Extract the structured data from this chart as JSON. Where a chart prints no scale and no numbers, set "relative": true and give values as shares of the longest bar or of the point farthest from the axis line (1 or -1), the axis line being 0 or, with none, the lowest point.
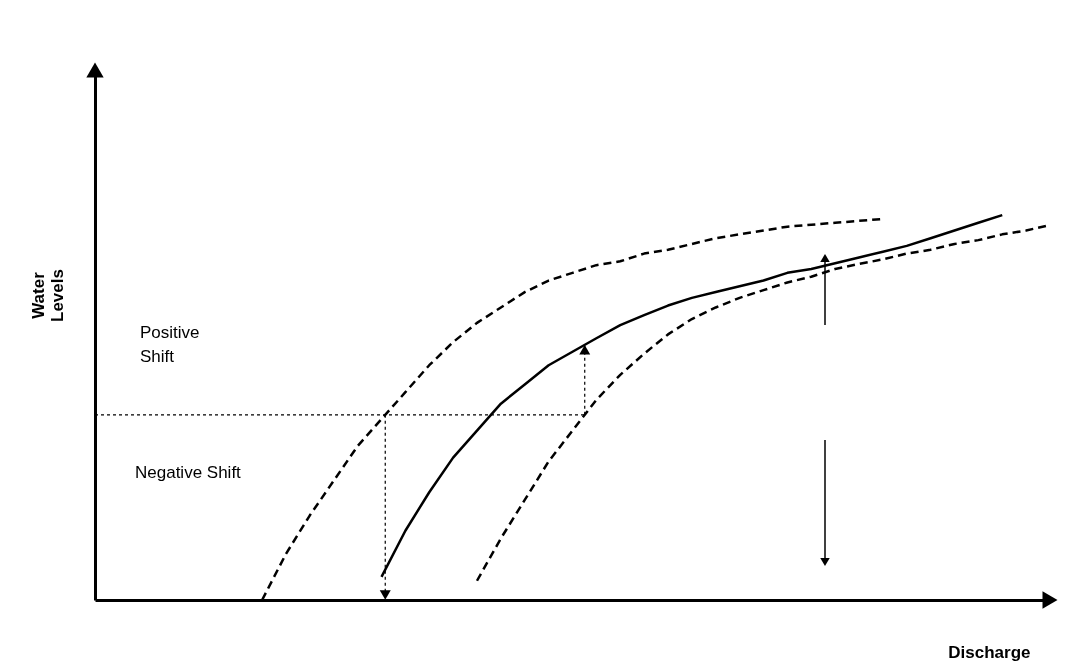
{
  "chart_data": {
    "type": "line",
    "relative": true,
    "xlabel": "Discharge",
    "ylabel": "Water Levels",
    "categories": [
      null,
      null,
      null,
      null,
      null,
      null,
      null,
      null,
      null,
      null,
      null,
      null,
      null,
      null,
      null,
      null,
      null,
      null,
      null,
      null,
      null,
      null,
      null,
      null,
      null,
      null,
      null,
      null,
      null,
      null,
      null,
      null,
      null,
      null,
      null,
      null,
      null,
      null,
      null,
      null,
      null
    ],
    "annotations": [
      "Positive Shift",
      "Negative Shift"
    ],
    "grid": false,
    "ref_lines": [
      {
        "axis": "y",
        "value": 0.481,
        "line_style": "dotted",
        "color": "#000000"
      }
    ],
    "series": [
      {
        "color": "#000000",
        "line_style": "dashed",
        "values": [
          null,
          null,
          null,
          null,
          null,
          null,
          null,
          0,
          0.12,
          0.22,
          0.31,
          0.4,
          0.47,
          0.54,
          0.61,
          0.67,
          0.72,
          0.76,
          0.8,
          0.83,
          0.85,
          0.87,
          0.88,
          0.9,
          0.91,
          0.925,
          0.94,
          0.95,
          0.96,
          0.97,
          0.975,
          0.98,
          0.985,
          0.99,
          null,
          null,
          null,
          null,
          null,
          null,
          null
        ]
      },
      {
        "color": "#000000",
        "line_style": "solid",
        "values": [
          null,
          null,
          null,
          null,
          null,
          null,
          null,
          null,
          null,
          null,
          null,
          null,
          0.06,
          0.18,
          0.28,
          0.37,
          0.44,
          0.51,
          0.56,
          0.61,
          0.645,
          0.68,
          0.714,
          0.74,
          0.765,
          0.785,
          0.8,
          0.815,
          0.83,
          0.85,
          0.86,
          0.875,
          0.89,
          0.905,
          0.92,
          0.94,
          0.96,
          0.98,
          1,
          null,
          null
        ]
      },
      {
        "color": "#000000",
        "line_style": "dashed",
        "values": [
          null,
          null,
          null,
          null,
          null,
          null,
          null,
          null,
          null,
          null,
          null,
          null,
          null,
          null,
          null,
          null,
          0.05,
          0.16,
          0.26,
          0.36,
          0.44,
          0.52,
          0.585,
          0.64,
          0.69,
          0.73,
          0.76,
          0.785,
          0.805,
          0.825,
          0.84,
          0.86,
          0.873,
          0.885,
          0.9,
          0.91,
          0.925,
          0.935,
          0.95,
          0.96,
          0.974
        ]
      }
    ]
  }
}
